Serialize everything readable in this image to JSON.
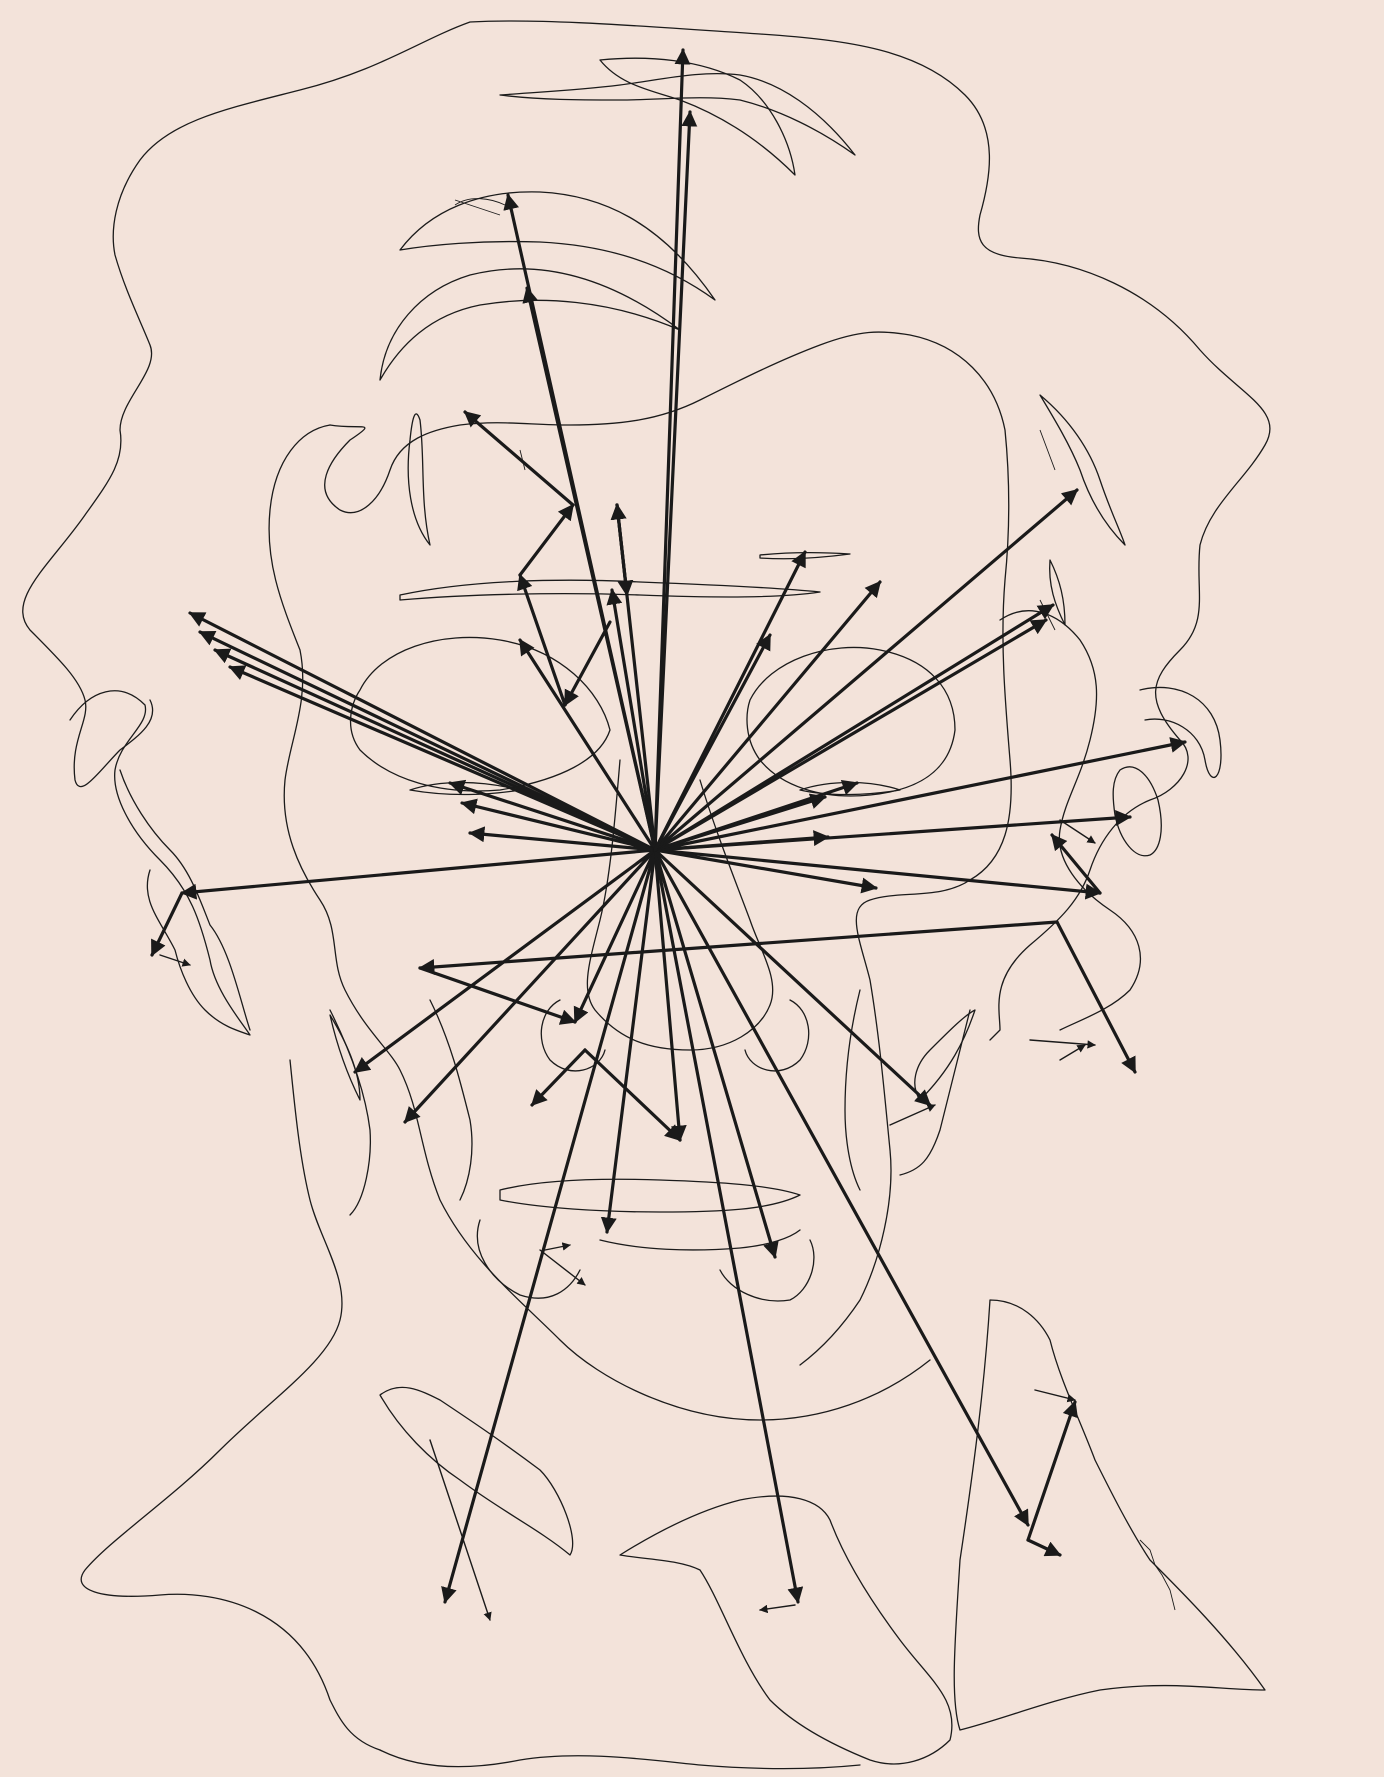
{
  "background_color": "#f3e3da",
  "stroke_color": "#1a1a1a"
}
